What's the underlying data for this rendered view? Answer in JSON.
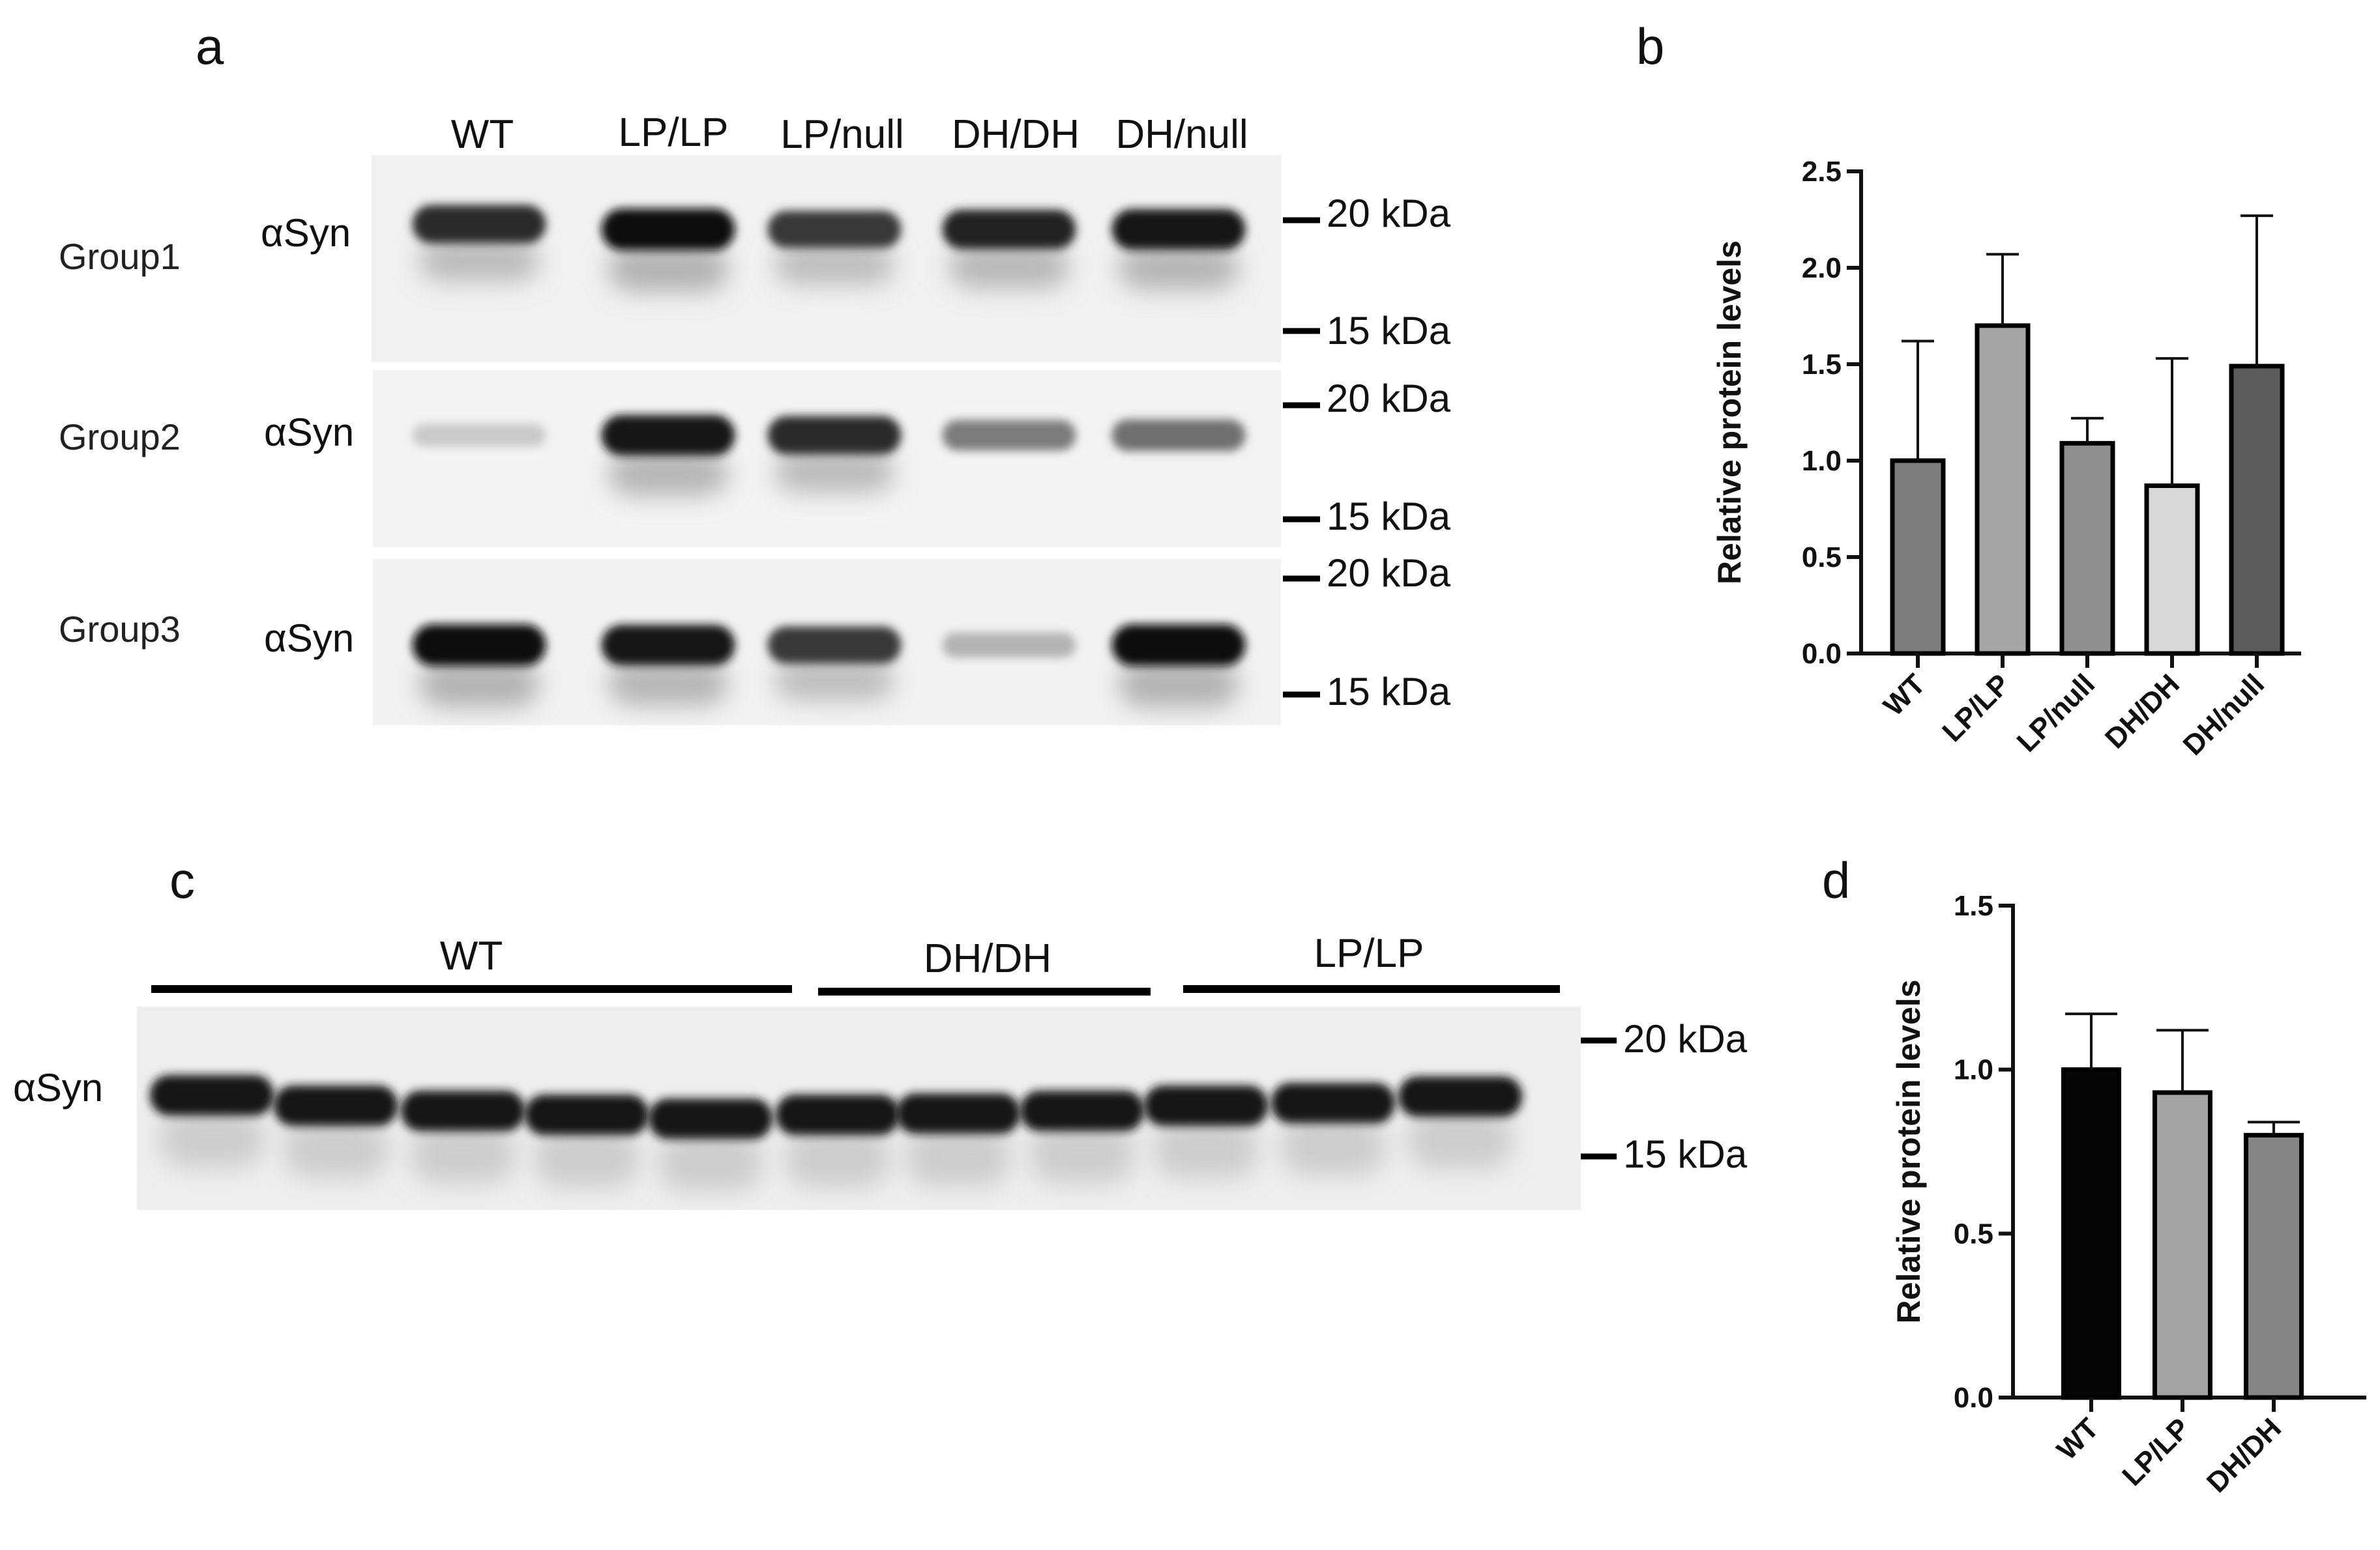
{
  "panel_letters": {
    "a": "a",
    "b": "b",
    "c": "c",
    "d": "d"
  },
  "panel_a": {
    "lanes": [
      "WT",
      "LP/LP",
      "LP/null",
      "DH/DH",
      "DH/null"
    ],
    "antibody": "αSyn",
    "markers": {
      "upper": "20 kDa",
      "lower": "15 kDa"
    },
    "groups": [
      {
        "name": "Group1",
        "band_intensity": [
          0.85,
          1.0,
          0.8,
          0.9,
          0.95
        ]
      },
      {
        "name": "Group2",
        "band_intensity": [
          0.15,
          0.95,
          0.85,
          0.5,
          0.55
        ]
      },
      {
        "name": "Group3",
        "band_intensity": [
          1.0,
          0.95,
          0.8,
          0.25,
          1.0
        ]
      }
    ]
  },
  "panel_c": {
    "groups": [
      {
        "label": "WT",
        "lanes": 5
      },
      {
        "label": "DH/DH",
        "lanes": 3
      },
      {
        "label": "LP/LP",
        "lanes": 3
      }
    ],
    "antibody": "αSyn",
    "markers": {
      "upper": "20 kDa",
      "lower": "15 kDa"
    }
  },
  "chart_data": [
    {
      "type": "bar",
      "panel": "b",
      "categories": [
        "WT",
        "LP/LP",
        "LP/null",
        "DH/DH",
        "DH/null"
      ],
      "values": [
        1.0,
        1.7,
        1.09,
        0.87,
        1.49
      ],
      "errors": [
        0.62,
        0.37,
        0.13,
        0.66,
        0.78
      ],
      "bar_colors": [
        "#7d7d7d",
        "#a5a5a5",
        "#8f8f8f",
        "#d9d9d9",
        "#5c5c5c"
      ],
      "ylabel": "Relative protein levels",
      "ylim": [
        0,
        2.5
      ],
      "yticks": [
        "0.0",
        "0.5",
        "1.0",
        "1.5",
        "2.0",
        "2.5"
      ],
      "grid": false
    },
    {
      "type": "bar",
      "panel": "d",
      "categories": [
        "WT",
        "LP/LP",
        "DH/DH"
      ],
      "values": [
        1.0,
        0.93,
        0.8
      ],
      "errors": [
        0.17,
        0.19,
        0.04
      ],
      "bar_colors": [
        "#050505",
        "#a3a3a3",
        "#858585"
      ],
      "ylabel": "Relative protein levels",
      "ylim": [
        0,
        1.5
      ],
      "yticks": [
        "0.0",
        "0.5",
        "1.0",
        "1.5"
      ],
      "grid": false
    }
  ]
}
